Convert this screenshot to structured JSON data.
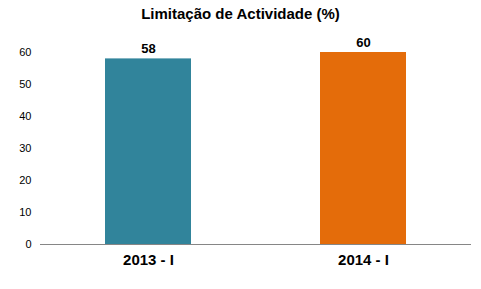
{
  "chart_data": {
    "type": "bar",
    "title": "Limitação de Actividade (%)",
    "categories": [
      "2013 - I",
      "2014 - I"
    ],
    "values": [
      58,
      60
    ],
    "colors": [
      "#31849b",
      "#e46c0a"
    ],
    "ylim": [
      0,
      60
    ],
    "yticks": [
      0,
      10,
      20,
      30,
      40,
      50,
      60
    ],
    "grid": false,
    "data_labels": true
  }
}
